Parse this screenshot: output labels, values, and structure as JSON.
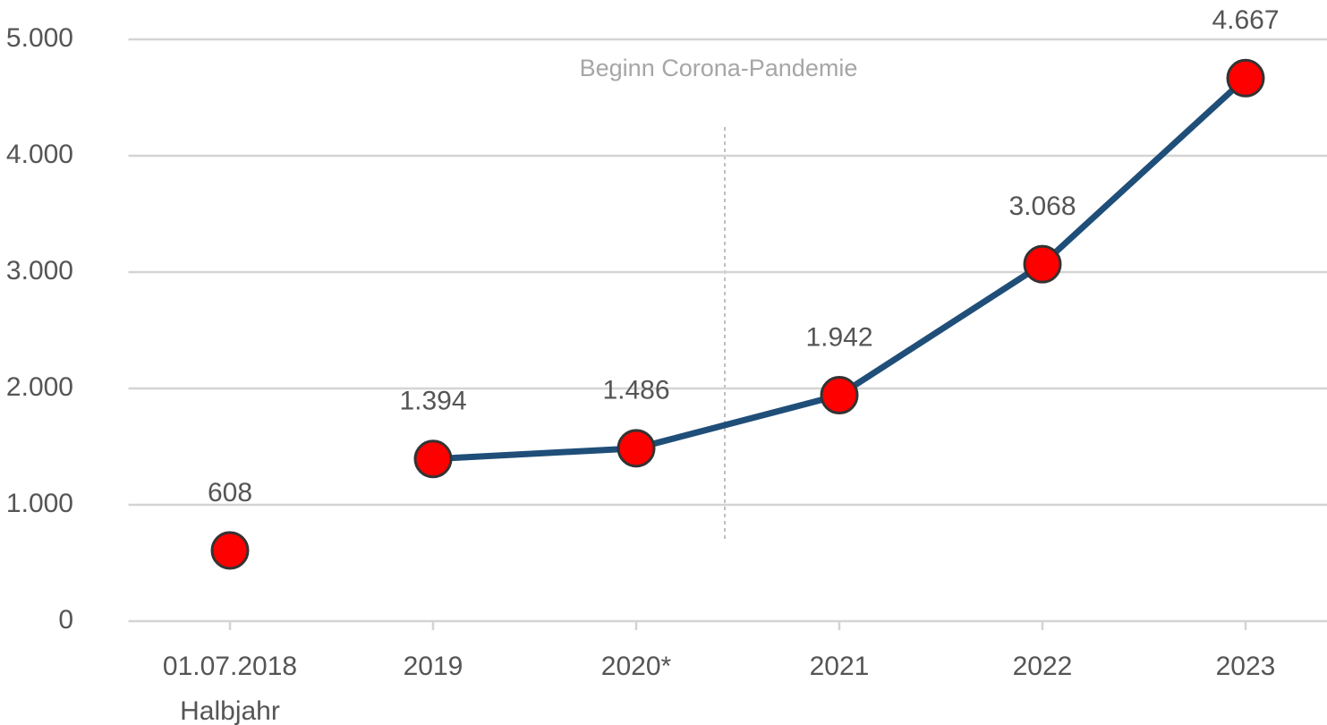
{
  "chart_data": {
    "type": "line",
    "annotation": "Beginn Corona-Pandemie",
    "categories": [
      [
        "01.07.2018",
        "Halbjahr"
      ],
      "2019",
      "2020*",
      "2021",
      "2022",
      "2023"
    ],
    "series": [
      {
        "color": "#1f4e79",
        "marker_color": "#ff0000",
        "values": [
          608,
          1394,
          1486,
          1942,
          3068,
          4667
        ],
        "value_labels": [
          "608",
          "1.394",
          "1.486",
          "1.942",
          "3.068",
          "4.667"
        ],
        "joined": [
          false,
          false,
          true,
          true,
          true,
          true
        ]
      }
    ],
    "ylim": [
      0,
      5000
    ],
    "yticks": [
      {
        "value": 0,
        "label": "0"
      },
      {
        "value": 1000,
        "label": "1.000"
      },
      {
        "value": 2000,
        "label": "2.000"
      },
      {
        "value": 3000,
        "label": "3.000"
      },
      {
        "value": 4000,
        "label": "4.000"
      },
      {
        "value": 5000,
        "label": "5.000"
      }
    ],
    "grid": true
  }
}
